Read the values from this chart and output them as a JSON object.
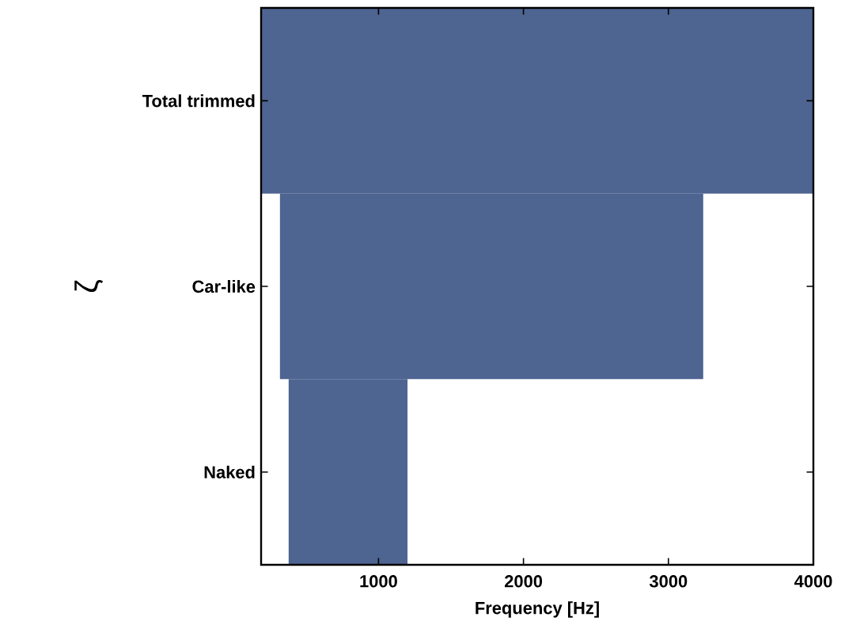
{
  "chart_data": {
    "type": "bar",
    "orientation": "horizontal",
    "xlabel": "Frequency [Hz]",
    "ylabel": "ζ",
    "categories": [
      "Total trimmed",
      "Car-like",
      "Naked"
    ],
    "base": [
      190,
      320,
      380
    ],
    "values": [
      3810,
      2920,
      820
    ],
    "color": "#4e6491",
    "xlim": [
      190,
      4000
    ],
    "xticks": [
      1000,
      2000,
      3000,
      4000
    ]
  }
}
